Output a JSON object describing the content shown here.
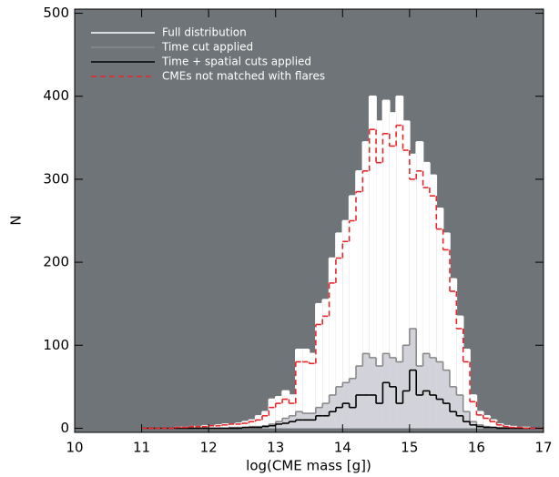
{
  "chart_data": {
    "type": "histogram",
    "xlabel": "log(CME mass [g])",
    "ylabel": "N",
    "xlim": [
      10,
      17
    ],
    "xticks": [
      10,
      11,
      12,
      13,
      14,
      15,
      16,
      17
    ],
    "ylim": [
      -5,
      505
    ],
    "yticks": [
      0,
      100,
      200,
      300,
      400,
      500
    ],
    "background": "#6e7478",
    "bins": [
      11.0,
      11.1,
      11.2,
      11.3,
      11.4,
      11.5,
      11.6,
      11.7,
      11.8,
      11.9,
      12.0,
      12.1,
      12.2,
      12.3,
      12.4,
      12.5,
      12.6,
      12.7,
      12.8,
      12.9,
      13.0,
      13.1,
      13.2,
      13.3,
      13.4,
      13.5,
      13.6,
      13.7,
      13.8,
      13.9,
      14.0,
      14.1,
      14.2,
      14.3,
      14.4,
      14.5,
      14.6,
      14.7,
      14.8,
      14.9,
      15.0,
      15.1,
      15.2,
      15.3,
      15.4,
      15.5,
      15.6,
      15.7,
      15.8,
      15.9,
      16.0,
      16.1,
      16.2,
      16.3,
      16.4,
      16.5,
      16.6,
      16.7,
      16.8,
      16.9,
      17.0
    ],
    "series": [
      {
        "name": "Full distribution",
        "color": "#ffffff",
        "fill": "#ffffff",
        "dashed": false,
        "values": [
          0,
          0,
          0,
          0,
          0,
          1,
          1,
          2,
          2,
          3,
          3,
          4,
          5,
          5,
          6,
          8,
          10,
          15,
          20,
          35,
          38,
          45,
          40,
          95,
          95,
          90,
          150,
          155,
          205,
          235,
          250,
          280,
          310,
          345,
          400,
          370,
          395,
          380,
          400,
          370,
          330,
          345,
          320,
          305,
          265,
          235,
          180,
          135,
          95,
          40,
          20,
          15,
          10,
          5,
          3,
          2,
          1,
          1,
          0,
          0
        ]
      },
      {
        "name": "Time cut applied",
        "color": "#8a8a8a",
        "fill": "#d2d3da",
        "dashed": false,
        "values": [
          0,
          0,
          0,
          0,
          0,
          0,
          0,
          0,
          0,
          0,
          0,
          0,
          0,
          1,
          1,
          1,
          2,
          2,
          3,
          5,
          8,
          12,
          15,
          20,
          18,
          18,
          25,
          30,
          40,
          50,
          55,
          60,
          75,
          90,
          85,
          75,
          90,
          85,
          80,
          100,
          120,
          75,
          90,
          85,
          80,
          70,
          50,
          40,
          20,
          8,
          4,
          2,
          1,
          1,
          0,
          0,
          0,
          0,
          0,
          0
        ]
      },
      {
        "name": "Time + spatial cuts applied",
        "color": "#000000",
        "dashed": false,
        "values": [
          0,
          0,
          0,
          0,
          0,
          0,
          0,
          0,
          0,
          0,
          0,
          0,
          0,
          0,
          0,
          1,
          1,
          1,
          2,
          3,
          5,
          6,
          8,
          10,
          10,
          10,
          15,
          15,
          20,
          25,
          30,
          25,
          40,
          40,
          40,
          30,
          55,
          50,
          30,
          45,
          70,
          40,
          45,
          40,
          35,
          30,
          20,
          15,
          8,
          4,
          2,
          1,
          1,
          0,
          0,
          0,
          0,
          0,
          0,
          0
        ]
      },
      {
        "name": "CMEs not matched with flares",
        "color": "#e8262a",
        "dashed": true,
        "values": [
          0,
          0,
          0,
          0,
          0,
          1,
          1,
          2,
          2,
          2,
          3,
          3,
          4,
          5,
          5,
          6,
          8,
          10,
          15,
          25,
          30,
          35,
          30,
          80,
          80,
          78,
          125,
          135,
          175,
          205,
          225,
          250,
          285,
          310,
          360,
          320,
          355,
          340,
          365,
          335,
          300,
          310,
          290,
          280,
          240,
          215,
          165,
          120,
          80,
          32,
          16,
          12,
          8,
          4,
          2,
          1,
          1,
          0,
          0,
          0
        ]
      }
    ]
  }
}
